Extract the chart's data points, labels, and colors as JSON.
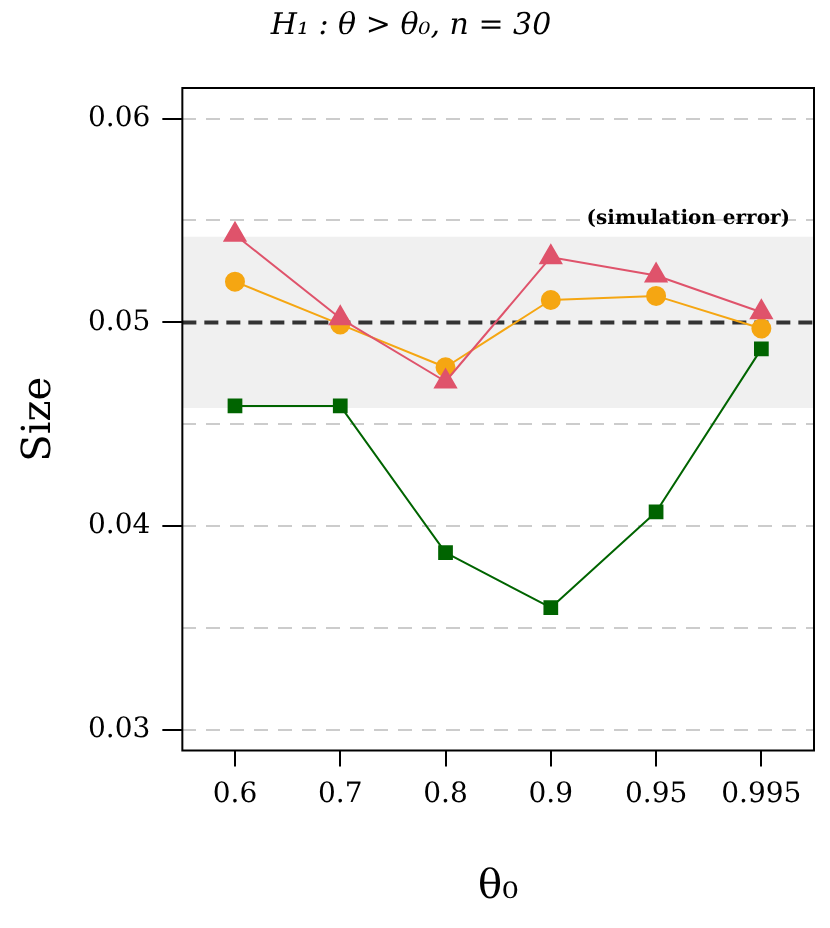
{
  "chart_data": {
    "type": "line",
    "title": "H₁ : θ > θ₀, n = 30",
    "xlabel": "θ₀",
    "ylabel": "Size",
    "categories": [
      "0.6",
      "0.7",
      "0.8",
      "0.9",
      "0.95",
      "0.995"
    ],
    "series": [
      {
        "color": "#df536b",
        "marker": "triangle",
        "values": [
          0.0543,
          0.0502,
          0.0471,
          0.0532,
          0.0523,
          0.0505
        ]
      },
      {
        "color": "#f5a612",
        "marker": "circle",
        "values": [
          0.052,
          0.0499,
          0.0478,
          0.0511,
          0.0513,
          0.0497
        ]
      },
      {
        "color": "#006400",
        "marker": "square",
        "values": [
          0.0459,
          0.0459,
          0.0387,
          0.036,
          0.0407,
          0.0487
        ]
      }
    ],
    "ylim": [
      0.029,
      0.0615
    ],
    "yticks": [
      0.03,
      {
        "value": 0.035,
        "label": null
      },
      0.04,
      {
        "value": 0.045,
        "label": null
      },
      0.05,
      {
        "value": 0.055,
        "label": null
      },
      0.06
    ],
    "grid": "y",
    "legend": false,
    "line_style": "solid",
    "ref_lines": [
      {
        "axis": "y",
        "value": 0.05,
        "color": "#333333",
        "line_style": "dashed"
      }
    ],
    "bands": [
      {
        "axis": "y",
        "from": 0.0458,
        "to": 0.0542,
        "label": "(simulation error)",
        "color": "#f0f0f0"
      }
    ]
  }
}
